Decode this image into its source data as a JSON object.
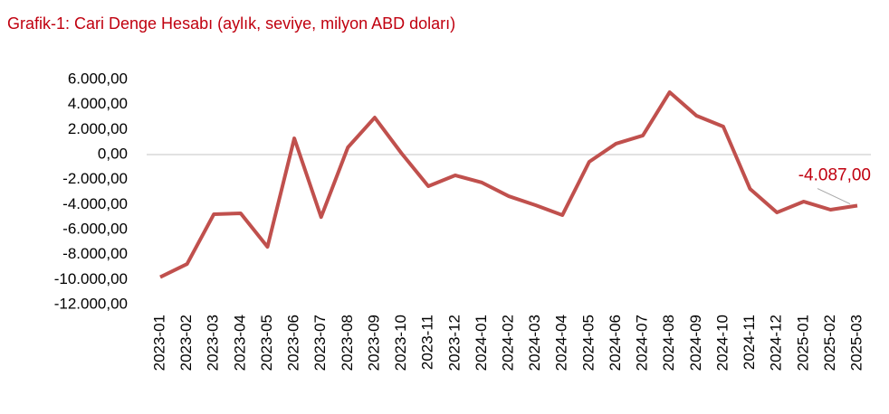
{
  "chart_data": {
    "type": "line",
    "title": "Grafik-1: Cari Denge Hesabı (aylık, seviye, milyon ABD doları)",
    "categories": [
      "2023-01",
      "2023-02",
      "2023-03",
      "2023-04",
      "2023-05",
      "2023-06",
      "2023-07",
      "2023-08",
      "2023-09",
      "2023-10",
      "2023-11",
      "2023-12",
      "2024-01",
      "2024-02",
      "2024-03",
      "2024-04",
      "2024-05",
      "2024-06",
      "2024-07",
      "2024-08",
      "2024-09",
      "2024-10",
      "2024-11",
      "2024-12",
      "2025-01",
      "2025-02",
      "2025-03"
    ],
    "values": [
      -9800,
      -8750,
      -4770,
      -4700,
      -7380,
      1300,
      -5000,
      580,
      2960,
      100,
      -2530,
      -1660,
      -2240,
      -3330,
      -4050,
      -4840,
      -580,
      870,
      1520,
      4990,
      3110,
      2240,
      -2750,
      -4630,
      -3760,
      -4410,
      -4087
    ],
    "value_labels": [
      null,
      null,
      null,
      null,
      null,
      null,
      null,
      null,
      null,
      null,
      null,
      null,
      null,
      null,
      null,
      null,
      null,
      null,
      null,
      null,
      null,
      null,
      null,
      null,
      null,
      null,
      "-4.087,00"
    ],
    "color": "#c0504d",
    "ylim": [
      -12000,
      6000
    ],
    "yticks": [
      {
        "value": -12000,
        "label": "-12.000,00"
      },
      {
        "value": -10000,
        "label": "-10.000,00"
      },
      {
        "value": -8000,
        "label": "-8.000,00"
      },
      {
        "value": -6000,
        "label": "-6.000,00"
      },
      {
        "value": -4000,
        "label": "-4.000,00"
      },
      {
        "value": -2000,
        "label": "-2.000,00"
      },
      {
        "value": 0,
        "label": "0,00"
      },
      {
        "value": 2000,
        "label": "2.000,00"
      },
      {
        "value": 4000,
        "label": "4.000,00"
      },
      {
        "value": 6000,
        "label": "6.000,00"
      }
    ],
    "grid": false
  }
}
